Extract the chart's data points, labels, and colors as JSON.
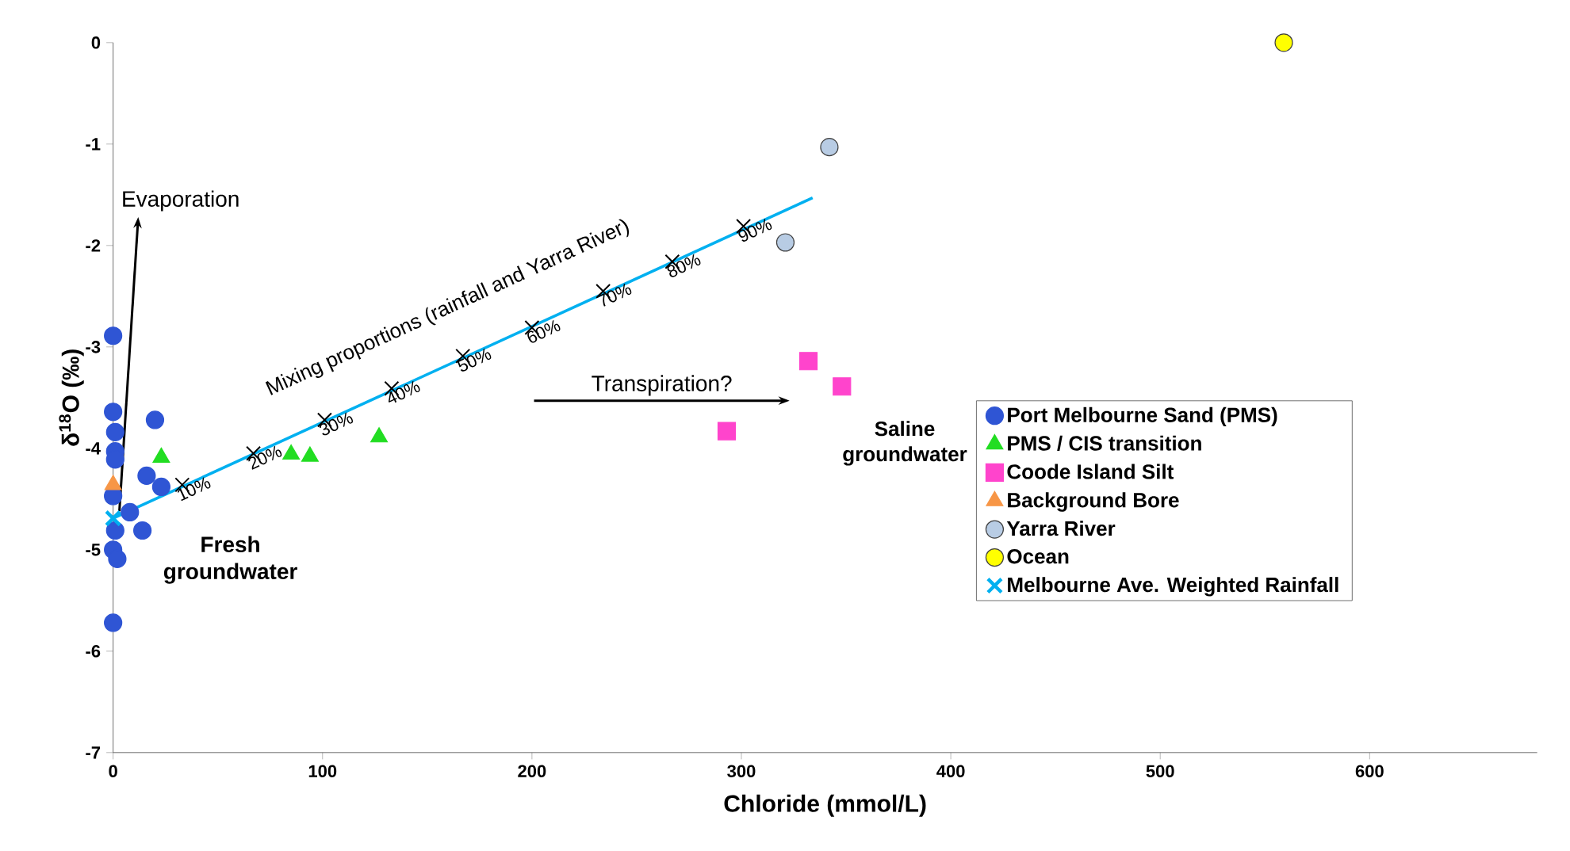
{
  "chart_data": {
    "type": "scatter",
    "xlabel": "Chloride (mmol/L)",
    "ylabel": "δ$^{18}$O (‰)",
    "xlim": [
      0,
      680
    ],
    "ylim": [
      -7,
      0
    ],
    "xticks": [
      0,
      100,
      200,
      300,
      400,
      500,
      600
    ],
    "yticks": [
      -7,
      -6,
      -5,
      -4,
      -3,
      -2,
      -1,
      0
    ],
    "grid": false,
    "legend": "right",
    "annotations": [
      "Evaporation",
      "Mixing proportions  (rainfall and Yarra River)",
      "Transpiration?",
      "Saline groundwater",
      "Fresh groundwater",
      {
        "text": "10%",
        "x": 33,
        "y": -4.36
      },
      {
        "text": "20%",
        "x": 67,
        "y": -4.05
      },
      {
        "text": "30%",
        "x": 101,
        "y": -3.72
      },
      {
        "text": "40%",
        "x": 133,
        "y": -3.41
      },
      {
        "text": "50%",
        "x": 167,
        "y": -3.09
      },
      {
        "text": "60%",
        "x": 200,
        "y": -2.81
      },
      {
        "text": "70%",
        "x": 234,
        "y": -2.45
      },
      {
        "text": "80%",
        "x": 267,
        "y": -2.16
      },
      {
        "text": "90%",
        "x": 301,
        "y": -1.81
      }
    ],
    "series": [
      {
        "name": "Port Melbourne Sand (PMS)",
        "color": "#2f55d4",
        "marker": "circle",
        "x": [
          0,
          0,
          20,
          1,
          1,
          1,
          16,
          23,
          0,
          8,
          14,
          1,
          0,
          2,
          0
        ],
        "values": [
          -2.89,
          -3.64,
          -3.72,
          -3.84,
          -4.03,
          -4.11,
          -4.27,
          -4.38,
          -4.47,
          -4.63,
          -4.81,
          -4.81,
          -5.0,
          -5.09,
          -5.72
        ]
      },
      {
        "name": "PMS / CIS transition",
        "color": "#22dd22",
        "marker": "triangle",
        "x": [
          23,
          85,
          94,
          127
        ],
        "values": [
          -4.09,
          -4.06,
          -4.08,
          -3.89
        ]
      },
      {
        "name": "Coode Island Silt",
        "color": "#ff44cc",
        "marker": "square",
        "x": [
          332,
          348,
          293
        ],
        "values": [
          -3.14,
          -3.39,
          -3.83
        ]
      },
      {
        "name": "Background Bore",
        "color": "#f79646",
        "marker": "triangle",
        "x": [
          0
        ],
        "values": [
          -4.36
        ]
      },
      {
        "name": "Yarra River",
        "color": "#b8cce4",
        "marker": "circle",
        "x": [
          342,
          321
        ],
        "values": [
          -1.03,
          -1.97
        ]
      },
      {
        "name": "Ocean",
        "color": "#ffff00",
        "marker": "circle",
        "x": [
          559
        ],
        "values": [
          0
        ]
      },
      {
        "name": "Melbourne Ave. Weighted Rainfall",
        "color": "#00b0f0",
        "marker": "cross",
        "x": [
          0
        ],
        "values": [
          -4.69
        ]
      },
      {
        "type": "line",
        "color": "#00b0f0",
        "marker": "none",
        "x": [
          0,
          334
        ],
        "values": [
          -4.69,
          -1.53
        ]
      },
      {
        "color": "#000000",
        "marker": "cross",
        "x": [
          33,
          67,
          101,
          133,
          167,
          200,
          234,
          267,
          301
        ],
        "values": [
          -4.36,
          -4.05,
          -3.72,
          -3.41,
          -3.09,
          -2.81,
          -2.45,
          -2.16,
          -1.81
        ]
      }
    ]
  }
}
